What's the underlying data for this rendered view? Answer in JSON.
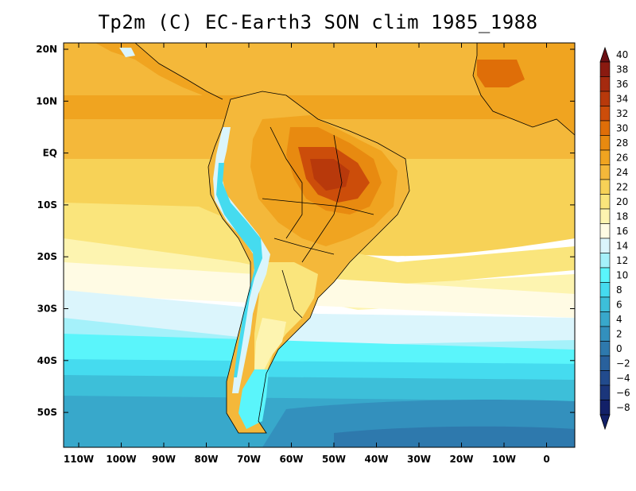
{
  "title": "Tp2m (C) EC-Earth3 SON clim 1985_1988",
  "map": {
    "lat_labels": [
      "20N",
      "10N",
      "EQ",
      "10S",
      "20S",
      "30S",
      "40S",
      "50S"
    ],
    "lon_labels": [
      "110W",
      "100W",
      "90W",
      "80W",
      "70W",
      "60W",
      "50W",
      "40W",
      "30W",
      "20W",
      "10W",
      "0"
    ],
    "lat_range": [
      -57,
      21
    ],
    "lon_range": [
      -115,
      6
    ]
  },
  "colorbar": {
    "labels": [
      "40",
      "38",
      "36",
      "34",
      "32",
      "30",
      "28",
      "26",
      "24",
      "22",
      "20",
      "18",
      "16",
      "14",
      "12",
      "10",
      "8",
      "6",
      "4",
      "2",
      "0",
      "−2",
      "−4",
      "−6",
      "−8"
    ],
    "colors": {
      "c40": "#6b0f14",
      "c38": "#8a1a10",
      "c36": "#a52a0f",
      "c34": "#b8390b",
      "c32": "#cc4d0a",
      "c30": "#df6e08",
      "c28": "#e88a10",
      "c26": "#f0a420",
      "c24": "#f4b83a",
      "c22": "#f7d257",
      "c20": "#fae57c",
      "c18": "#fdf4b0",
      "c16": "#fffbe4",
      "c14": "#dbf5fc",
      "c12": "#a5f1fa",
      "c10": "#5af5fb",
      "c8": "#45dbef",
      "c6": "#3dbfd9",
      "c4": "#38a8cb",
      "c2": "#3390bd",
      "c0": "#2e79ad",
      "cm2": "#29619d",
      "cm4": "#224b8d",
      "cm6": "#1b367b",
      "cm8": "#122068"
    }
  }
}
